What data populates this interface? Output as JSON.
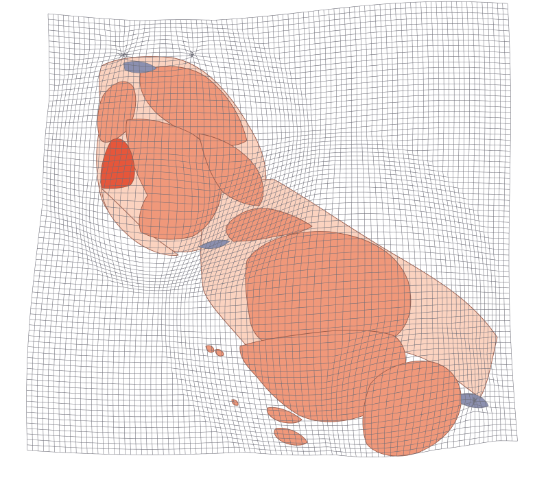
{
  "map": {
    "type": "cartogram",
    "graticule": {
      "visible": true,
      "color": "#6e6e78"
    },
    "colors": {
      "background": "#ffffff",
      "grid": "#6e6e78",
      "border": "#9a5a48",
      "light": "#fbd3c0",
      "medium": "#f0987a",
      "dark": "#e6563a",
      "water": "#8c90b0"
    },
    "regions": [
      {
        "name": "",
        "shade": "medium",
        "icon": "region-shape"
      },
      {
        "name": "",
        "shade": "light",
        "icon": "region-shape"
      },
      {
        "name": "",
        "shade": "dark",
        "icon": "region-shape"
      }
    ]
  }
}
